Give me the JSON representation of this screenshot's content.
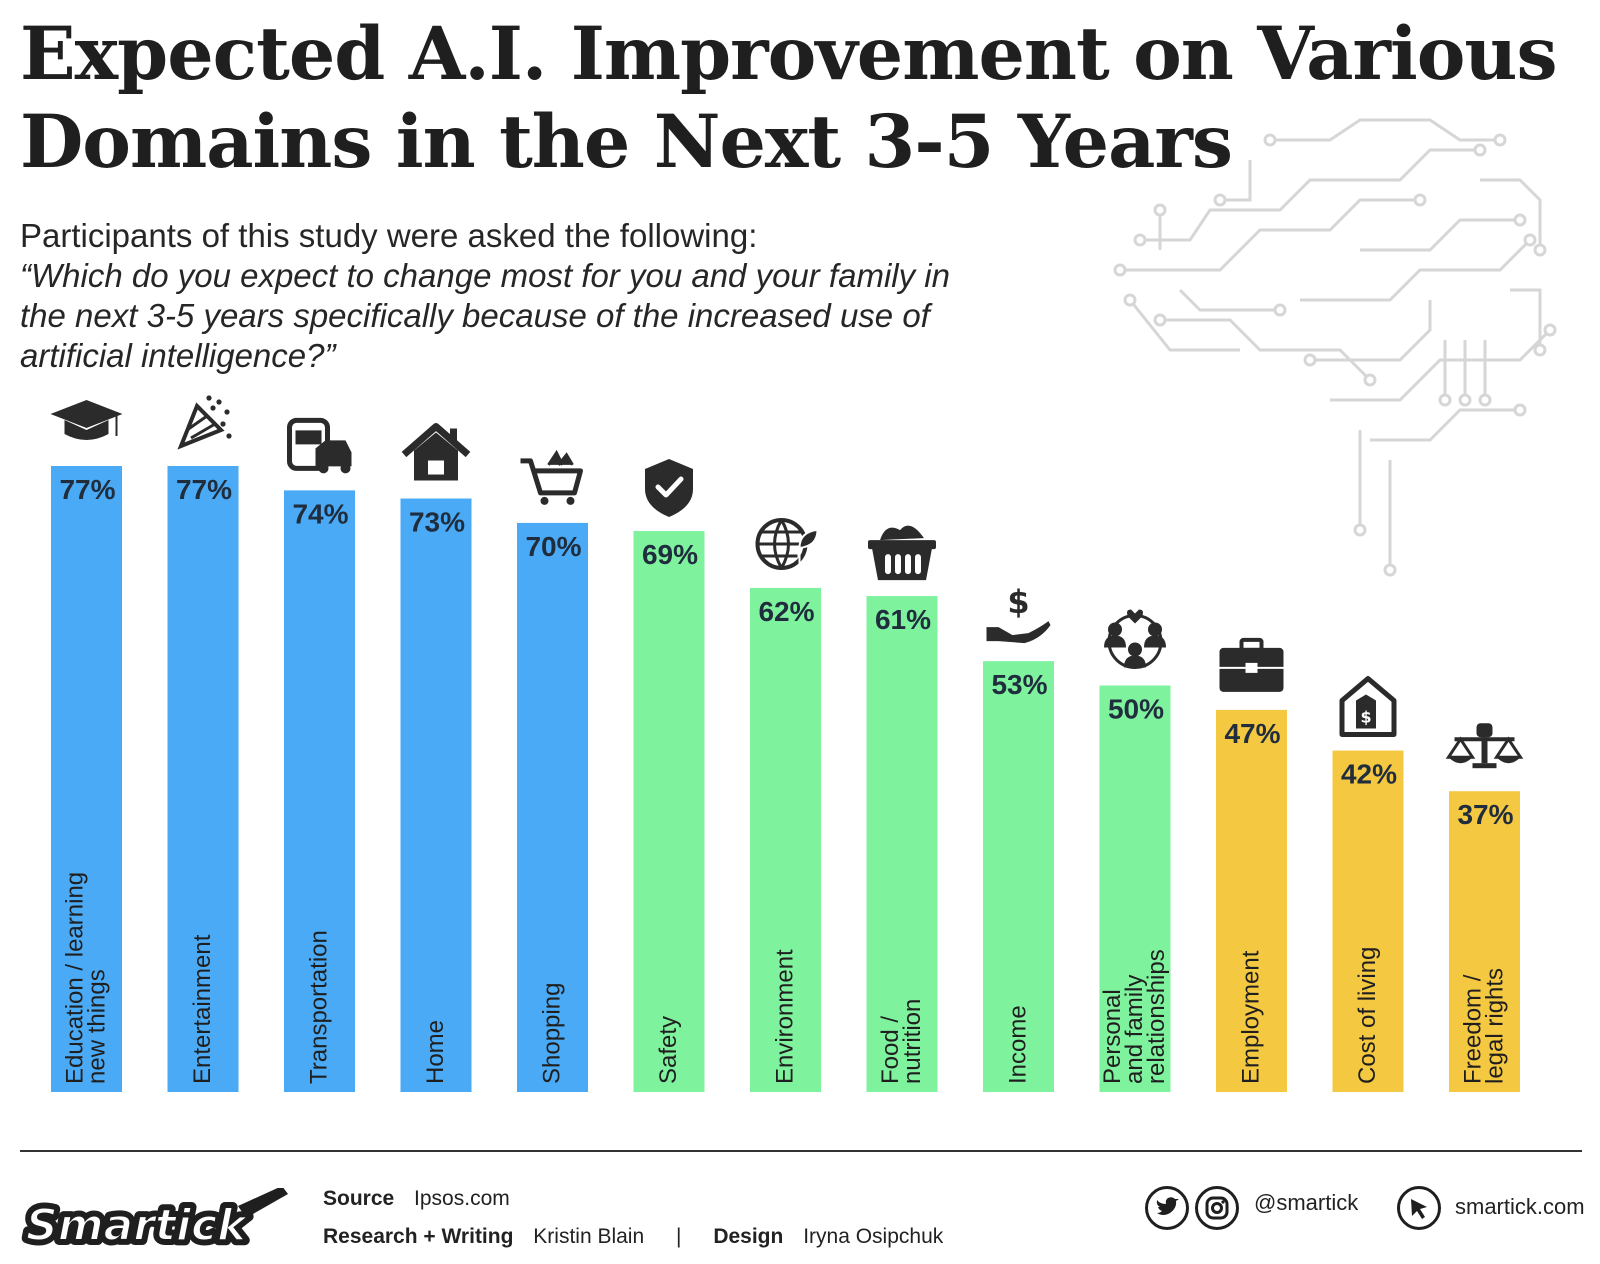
{
  "title": "Expected A.I. Improvement on Various Domains in the Next 3-5 Years",
  "intro": {
    "lead": "Participants of this study were asked the following:",
    "question": "“Which do you expect to change most for you and your family in the next 3-5 years specifically because of the increased use of artificial intelligence?”"
  },
  "colors": {
    "blue": "#4aaaf5",
    "green": "#7ff29e",
    "yellow": "#f5c842",
    "text": "#1f2d3d"
  },
  "chart_data": {
    "type": "bar",
    "title": "Expected A.I. Improvement on Various Domains in the Next 3-5 Years",
    "xlabel": "",
    "ylabel": "",
    "ylim": [
      0,
      100
    ],
    "grid": false,
    "value_labels": [
      "77%",
      "77%",
      "74%",
      "73%",
      "70%",
      "69%",
      "62%",
      "61%",
      "53%",
      "50%",
      "47%",
      "42%",
      "37%"
    ],
    "categories": [
      "Education / learning new things",
      "Entertainment",
      "Transportation",
      "Home",
      "Shopping",
      "Safety",
      "Environment",
      "Food / nutrition",
      "Income",
      "Personal and family relationships",
      "Employment",
      "Cost of living",
      "Freedom / legal rights"
    ],
    "category_lines": [
      [
        "Education / learning",
        "new things"
      ],
      [
        "Entertainment"
      ],
      [
        "Transportation"
      ],
      [
        "Home"
      ],
      [
        "Shopping"
      ],
      [
        "Safety"
      ],
      [
        "Environment"
      ],
      [
        "Food /",
        "nutrition"
      ],
      [
        "Income"
      ],
      [
        "Personal",
        "and family",
        "relationships"
      ],
      [
        "Employment"
      ],
      [
        "Cost of living"
      ],
      [
        "Freedom /",
        "legal rights"
      ]
    ],
    "values": [
      77,
      77,
      74,
      73,
      70,
      69,
      62,
      61,
      53,
      50,
      47,
      42,
      37
    ],
    "bar_color_keys": [
      "blue",
      "blue",
      "blue",
      "blue",
      "blue",
      "green",
      "green",
      "green",
      "green",
      "green",
      "yellow",
      "yellow",
      "yellow"
    ],
    "icons": [
      "graduation-cap-icon",
      "party-popper-icon",
      "bus-car-icon",
      "house-icon",
      "shopping-cart-icon",
      "shield-check-icon",
      "globe-leaf-icon",
      "food-basket-icon",
      "hand-dollar-icon",
      "family-heart-icon",
      "briefcase-icon",
      "house-price-tag-icon",
      "scales-fist-icon"
    ]
  },
  "footer": {
    "logo": "Smartick",
    "source_label": "Source",
    "source_value": "Ipsos.com",
    "research_label": "Research + Writing",
    "research_value": "Kristin Blain",
    "separator": "|",
    "design_label": "Design",
    "design_value": "Iryna Osipchuk",
    "twitter_icon": "twitter-icon",
    "instagram_icon": "instagram-icon",
    "handle": "@smartick",
    "cursor_icon": "cursor-icon",
    "website": "smartick.com"
  }
}
